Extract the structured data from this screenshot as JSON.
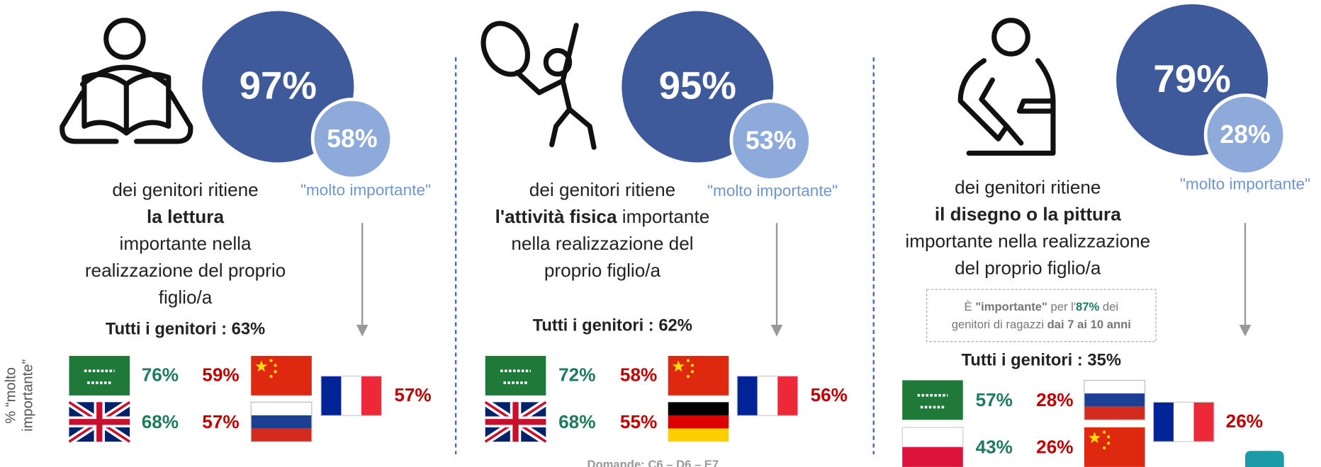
{
  "y_axis_label": [
    "% “molto",
    "importante”"
  ],
  "footer": "Domande: C6 – D6 – E7",
  "panels": [
    {
      "big": "97%",
      "big_color": "#3f5a9a",
      "small": "58%",
      "small_color": "#8eaadb",
      "small_label": "\"molto importante\"",
      "lines": [
        [
          {
            "text": "dei genitori ritiene",
            "bold": false
          }
        ],
        [
          {
            "text": "la lettura",
            "bold": true
          }
        ],
        [
          {
            "text": "importante nella",
            "bold": false
          }
        ],
        [
          {
            "text": "realizzazione del proprio",
            "bold": false
          }
        ],
        [
          {
            "text": "figlio/a",
            "bold": false
          }
        ]
      ],
      "all_parents": "Tutti i genitori : 63%",
      "countries": [
        {
          "flag": "sa",
          "value": "76%",
          "color": "#1e7b5c"
        },
        {
          "flag": "gb",
          "value": "68%",
          "color": "#1e7b5c"
        },
        {
          "flag": "cn",
          "value": "59%",
          "color": "#c00000"
        },
        {
          "flag": "ru",
          "value": "57%",
          "color": "#c00000"
        },
        {
          "flag": "fr",
          "value": "57%",
          "color": "#c00000"
        }
      ]
    },
    {
      "big": "95%",
      "big_color": "#3f5a9a",
      "small": "53%",
      "small_color": "#8eaadb",
      "small_label": "\"molto importante\"",
      "lines": [
        [
          {
            "text": "dei genitori ritiene",
            "bold": false
          }
        ],
        [
          {
            "text": "l'attività fisica",
            "bold": true
          },
          {
            "text": " importante",
            "bold": false
          }
        ],
        [
          {
            "text": "nella realizzazione del",
            "bold": false
          }
        ],
        [
          {
            "text": "proprio figlio/a",
            "bold": false
          }
        ]
      ],
      "all_parents": "Tutti i genitori : 62%",
      "countries": [
        {
          "flag": "sa",
          "value": "72%",
          "color": "#1e7b5c"
        },
        {
          "flag": "gb",
          "value": "68%",
          "color": "#1e7b5c"
        },
        {
          "flag": "cn",
          "value": "58%",
          "color": "#c00000"
        },
        {
          "flag": "de",
          "value": "55%",
          "color": "#c00000"
        },
        {
          "flag": "fr",
          "value": "56%",
          "color": "#c00000"
        }
      ]
    },
    {
      "big": "79%",
      "big_color": "#3f5a9a",
      "small": "28%",
      "small_color": "#8eaadb",
      "small_label": "\"molto importante\"",
      "lines": [
        [
          {
            "text": "dei genitori ritiene",
            "bold": false
          }
        ],
        [
          {
            "text": "il disegno o la pittura",
            "bold": true
          }
        ],
        [
          {
            "text": "importante nella realizzazione",
            "bold": false
          }
        ],
        [
          {
            "text": "del proprio figlio/a",
            "bold": false
          }
        ]
      ],
      "note": [
        [
          {
            "text": "È ",
            "bold": false
          },
          {
            "text": "\"importante\"",
            "bold": true
          },
          {
            "text": " per l'",
            "bold": false
          },
          {
            "text": "87%",
            "bold": true,
            "color": "#1e7b5c"
          },
          {
            "text": " dei",
            "bold": false
          }
        ],
        [
          {
            "text": "genitori di ragazzi ",
            "bold": false
          },
          {
            "text": "dai 7 ai 10 anni",
            "bold": true
          }
        ]
      ],
      "all_parents": "Tutti i genitori : 35%",
      "countries": [
        {
          "flag": "sa",
          "value": "57%",
          "color": "#1e7b5c"
        },
        {
          "flag": "pl",
          "value": "43%",
          "color": "#1e7b5c"
        },
        {
          "flag": "ru",
          "value": "28%",
          "color": "#c00000"
        },
        {
          "flag": "cn",
          "value": "26%",
          "color": "#c00000"
        },
        {
          "flag": "fr",
          "value": "26%",
          "color": "#c00000"
        }
      ]
    }
  ]
}
